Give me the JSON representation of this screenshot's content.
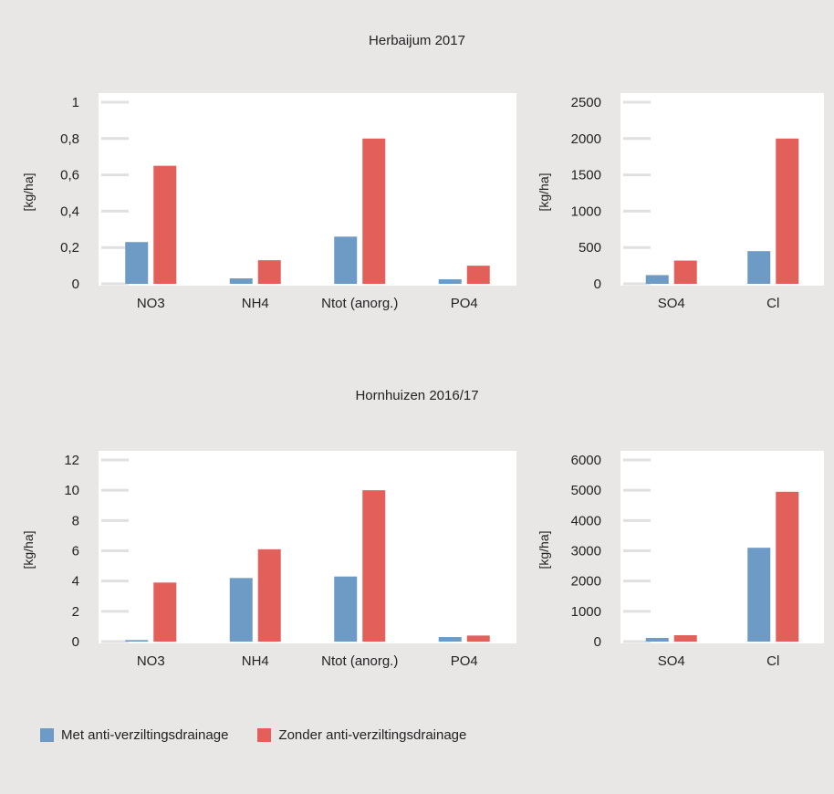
{
  "panels": [
    {
      "title": "Herbaijum 2017"
    },
    {
      "title": "Hornhuizen 2016/17"
    }
  ],
  "legend": {
    "items": [
      {
        "label": "Met anti-verziltingsdrainage",
        "color": "#6e9bc5"
      },
      {
        "label": "Zonder anti-verziltingsdrainage",
        "color": "#e3605a"
      }
    ]
  },
  "colors": {
    "series1": "#6e9bc5",
    "series2": "#e3605a",
    "plot_bg": "#ffffff",
    "gridline": "#e0e0e0"
  },
  "chart_data": [
    {
      "type": "bar",
      "ylabel": "[kg/ha]",
      "categories": [
        "NO3",
        "NH4",
        "Ntot (anorg.)",
        "PO4"
      ],
      "ylim": [
        0,
        1
      ],
      "yticks": [
        0,
        0.2,
        0.4,
        0.6,
        0.8,
        1
      ],
      "ytick_labels": [
        "0",
        "0,2",
        "0,4",
        "0,6",
        "0,8",
        "1"
      ],
      "grid": true,
      "series": [
        {
          "name": "Met anti-verziltingsdrainage",
          "values": [
            0.23,
            0.03,
            0.26,
            0.025
          ]
        },
        {
          "name": "Zonder anti-verziltingsdrainage",
          "values": [
            0.65,
            0.13,
            0.8,
            0.1
          ]
        }
      ]
    },
    {
      "type": "bar",
      "ylabel": "[kg/ha]",
      "categories": [
        "SO4",
        "Cl"
      ],
      "ylim": [
        0,
        2500
      ],
      "yticks": [
        0,
        500,
        1000,
        1500,
        2000,
        2500
      ],
      "ytick_labels": [
        "0",
        "500",
        "1000",
        "1500",
        "2000",
        "2500"
      ],
      "grid": true,
      "series": [
        {
          "name": "Met anti-verziltingsdrainage",
          "values": [
            120,
            450
          ]
        },
        {
          "name": "Zonder anti-verziltingsdrainage",
          "values": [
            320,
            2000
          ]
        }
      ]
    },
    {
      "type": "bar",
      "ylabel": "[kg/ha]",
      "categories": [
        "NO3",
        "NH4",
        "Ntot (anorg.)",
        "PO4"
      ],
      "ylim": [
        0,
        12
      ],
      "yticks": [
        0,
        2,
        4,
        6,
        8,
        10,
        12
      ],
      "ytick_labels": [
        "0",
        "2",
        "4",
        "6",
        "8",
        "10",
        "12"
      ],
      "grid": true,
      "series": [
        {
          "name": "Met anti-verziltingsdrainage",
          "values": [
            0.1,
            4.2,
            4.3,
            0.3
          ]
        },
        {
          "name": "Zonder anti-verziltingsdrainage",
          "values": [
            3.9,
            6.1,
            10,
            0.4
          ]
        }
      ]
    },
    {
      "type": "bar",
      "ylabel": "[kg/ha]",
      "categories": [
        "SO4",
        "Cl"
      ],
      "ylim": [
        0,
        6000
      ],
      "yticks": [
        0,
        1000,
        2000,
        3000,
        4000,
        5000,
        6000
      ],
      "ytick_labels": [
        "0",
        "1000",
        "2000",
        "3000",
        "4000",
        "5000",
        "6000"
      ],
      "grid": true,
      "series": [
        {
          "name": "Met anti-verziltingsdrainage",
          "values": [
            120,
            3100
          ]
        },
        {
          "name": "Zonder anti-verziltingsdrainage",
          "values": [
            210,
            4950
          ]
        }
      ]
    }
  ]
}
